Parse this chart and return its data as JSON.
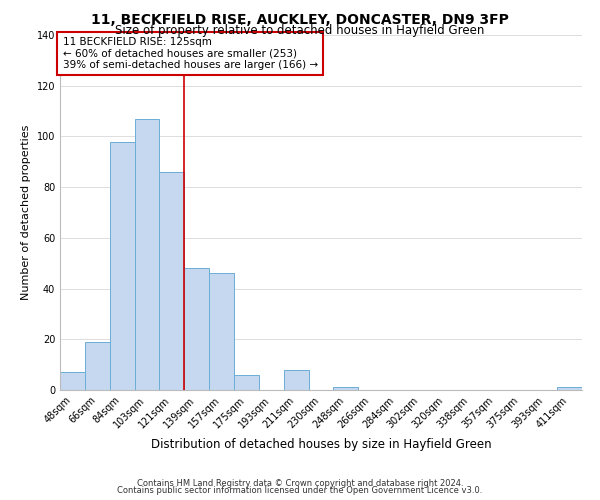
{
  "title": "11, BECKFIELD RISE, AUCKLEY, DONCASTER, DN9 3FP",
  "subtitle": "Size of property relative to detached houses in Hayfield Green",
  "xlabel": "Distribution of detached houses by size in Hayfield Green",
  "ylabel": "Number of detached properties",
  "bar_labels": [
    "48sqm",
    "66sqm",
    "84sqm",
    "103sqm",
    "121sqm",
    "139sqm",
    "157sqm",
    "175sqm",
    "193sqm",
    "211sqm",
    "230sqm",
    "248sqm",
    "266sqm",
    "284sqm",
    "302sqm",
    "320sqm",
    "338sqm",
    "357sqm",
    "375sqm",
    "393sqm",
    "411sqm"
  ],
  "bar_heights": [
    7,
    19,
    98,
    107,
    86,
    48,
    46,
    6,
    0,
    8,
    0,
    1,
    0,
    0,
    0,
    0,
    0,
    0,
    0,
    0,
    1
  ],
  "bar_color": "#c5d8f0",
  "bar_edge_color": "#6baed6",
  "vline_x_index": 4,
  "vline_color": "#cc0000",
  "ylim": [
    0,
    140
  ],
  "yticks": [
    0,
    20,
    40,
    60,
    80,
    100,
    120,
    140
  ],
  "annotation_title": "11 BECKFIELD RISE: 125sqm",
  "annotation_line1": "← 60% of detached houses are smaller (253)",
  "annotation_line2": "39% of semi-detached houses are larger (166) →",
  "annotation_box_color": "#ffffff",
  "annotation_box_edge_color": "#cc0000",
  "footer_line1": "Contains HM Land Registry data © Crown copyright and database right 2024.",
  "footer_line2": "Contains public sector information licensed under the Open Government Licence v3.0.",
  "background_color": "#ffffff",
  "grid_color": "#d0d0d0",
  "title_fontsize": 10,
  "subtitle_fontsize": 8.5,
  "ylabel_fontsize": 8,
  "xlabel_fontsize": 8.5,
  "tick_fontsize": 7,
  "annot_fontsize": 7.5,
  "footer_fontsize": 6
}
